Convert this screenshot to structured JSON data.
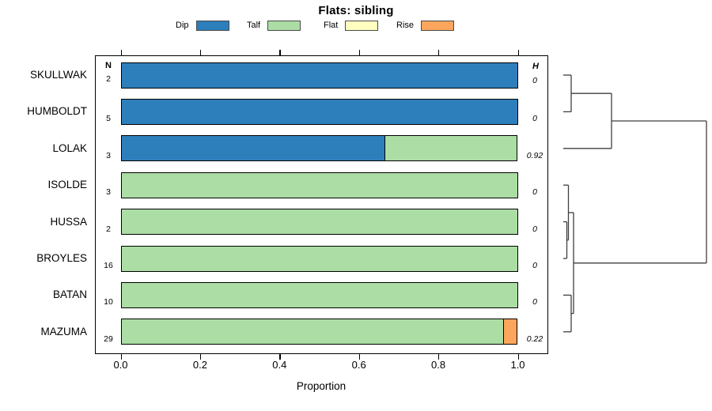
{
  "title": "Flats: sibling",
  "axis": {
    "xlabel": "Proportion",
    "tick_labels": [
      "0.0",
      "0.2",
      "0.4",
      "0.6",
      "0.8",
      "1.0"
    ],
    "tick_values": [
      0.0,
      0.2,
      0.4,
      0.6,
      0.8,
      1.0
    ]
  },
  "columns": {
    "n_header": "N",
    "h_header": "H"
  },
  "legend": [
    {
      "label": "Dip",
      "color": "#2d7fbb"
    },
    {
      "label": "Talf",
      "color": "#abdda4"
    },
    {
      "label": "Flat",
      "color": "#ffffbf"
    },
    {
      "label": "Rise",
      "color": "#fba65c"
    }
  ],
  "chart_data": {
    "type": "bar",
    "stacked": true,
    "orientation": "horizontal",
    "title": "Flats: sibling",
    "xlabel": "Proportion",
    "xlim": [
      0,
      1
    ],
    "x_ticks": [
      0.0,
      0.2,
      0.4,
      0.6,
      0.8,
      1.0
    ],
    "grid": false,
    "legend_position": "top",
    "series_names": [
      "Dip",
      "Talf",
      "Flat",
      "Rise"
    ],
    "series_colors": [
      "#2d7fbb",
      "#abdda4",
      "#ffffbf",
      "#fba65c"
    ],
    "categories": [
      "SKULLWAK",
      "HUMBOLDT",
      "LOLAK",
      "ISOLDE",
      "HUSSA",
      "BROYLES",
      "BATAN",
      "MAZUMA"
    ],
    "rows": [
      {
        "label": "SKULLWAK",
        "n": "2",
        "h": "0",
        "segments": [
          1,
          0,
          0,
          0
        ]
      },
      {
        "label": "HUMBOLDT",
        "n": "5",
        "h": "0",
        "segments": [
          1,
          0,
          0,
          0
        ]
      },
      {
        "label": "LOLAK",
        "n": "3",
        "h": "0.92",
        "segments": [
          0.667,
          0.333,
          0,
          0
        ]
      },
      {
        "label": "ISOLDE",
        "n": "3",
        "h": "0",
        "segments": [
          0,
          1,
          0,
          0
        ]
      },
      {
        "label": "HUSSA",
        "n": "2",
        "h": "0",
        "segments": [
          0,
          1,
          0,
          0
        ]
      },
      {
        "label": "BROYLES",
        "n": "16",
        "h": "0",
        "segments": [
          0,
          1,
          0,
          0
        ]
      },
      {
        "label": "BATAN",
        "n": "10",
        "h": "0",
        "segments": [
          0,
          1,
          0,
          0
        ]
      },
      {
        "label": "MAZUMA",
        "n": "29",
        "h": "0.22",
        "segments": [
          0,
          0.966,
          0,
          0.034
        ]
      }
    ],
    "dendrogram": {
      "side": "right",
      "leaf_order": [
        "SKULLWAK",
        "HUMBOLDT",
        "LOLAK",
        "ISOLDE",
        "HUSSA",
        "BROYLES",
        "BATAN",
        "MAZUMA"
      ],
      "merges": [
        {
          "id": "m0",
          "children": [
            "HUSSA",
            "BROYLES"
          ],
          "height": 4.5
        },
        {
          "id": "m1",
          "children": [
            "ISOLDE",
            "m0"
          ],
          "height": 6.5
        },
        {
          "id": "m2",
          "children": [
            "SKULLWAK",
            "HUMBOLDT"
          ],
          "height": 10
        },
        {
          "id": "m3",
          "children": [
            "BATAN",
            "MAZUMA"
          ],
          "height": 10
        },
        {
          "id": "m4",
          "children": [
            "m1",
            "m3"
          ],
          "height": 13
        },
        {
          "id": "m5",
          "children": [
            "m2",
            "LOLAK"
          ],
          "height": 61
        },
        {
          "id": "m6",
          "children": [
            "m5",
            "m4"
          ],
          "height": 181
        }
      ]
    }
  }
}
